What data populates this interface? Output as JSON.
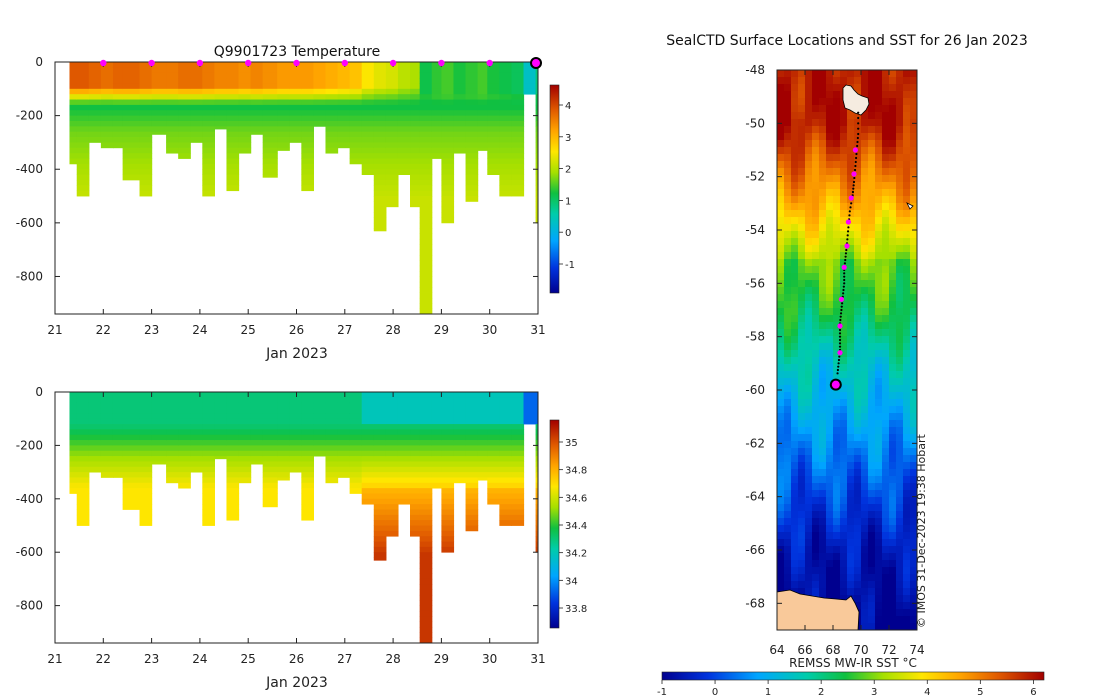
{
  "temperature_panel": {
    "title": "Q9901723  Temperature",
    "xlabel": "Jan 2023",
    "x_ticks": [
      "21",
      "22",
      "23",
      "24",
      "25",
      "26",
      "27",
      "28",
      "29",
      "30",
      "31"
    ],
    "y_ticks": [
      "0",
      "-200",
      "-400",
      "-600",
      "-800"
    ],
    "colorbar_ticks": [
      "4",
      "3",
      "2",
      "1",
      "0",
      "-1"
    ]
  },
  "salinity_panel": {
    "xlabel": "Jan 2023",
    "x_ticks": [
      "21",
      "22",
      "23",
      "24",
      "25",
      "26",
      "27",
      "28",
      "29",
      "30",
      "31"
    ],
    "y_ticks": [
      "0",
      "-200",
      "-400",
      "-600",
      "-800"
    ],
    "colorbar_ticks": [
      "35",
      "34.8",
      "34.6",
      "34.4",
      "34.2",
      "34",
      "33.8"
    ]
  },
  "map_panel": {
    "title": "SealCTD Surface Locations and SST for 26 Jan 2023",
    "lat_ticks": [
      "-48",
      "-50",
      "-52",
      "-54",
      "-56",
      "-58",
      "-60",
      "-62",
      "-64",
      "-66",
      "-68"
    ],
    "lon_ticks": [
      "64",
      "66",
      "68",
      "70",
      "72",
      "74"
    ],
    "colorbar_label": "REMSS MW-IR SST °C",
    "colorbar_ticks": [
      "-1",
      "0",
      "1",
      "2",
      "3",
      "4",
      "5",
      "6"
    ],
    "credit": "©  IMOS 31-Dec-2023 19:38 Hobart"
  },
  "colors": {
    "daily_marker": "#ff00ff",
    "current_marker": "#ff00ff",
    "land": "#f9c99a",
    "track_dot": "#000000"
  },
  "chart_data": [
    {
      "type": "heatmap",
      "title": "Q9901723  Temperature",
      "xlabel": "Jan 2023",
      "ylabel": "",
      "xlim": [
        21,
        31
      ],
      "ylim": [
        -940,
        0
      ],
      "colorbar_range": [
        -2,
        4.8
      ],
      "profiles": [
        {
          "t": 21.3,
          "depth": 380,
          "surf": 4.0
        },
        {
          "t": 21.45,
          "depth": 500,
          "surf": 4.0
        },
        {
          "t": 21.7,
          "depth": 300,
          "surf": 3.9
        },
        {
          "t": 21.95,
          "depth": 320,
          "surf": 3.8
        },
        {
          "t": 22.2,
          "depth": 320,
          "surf": 3.9
        },
        {
          "t": 22.4,
          "depth": 440,
          "surf": 3.9
        },
        {
          "t": 22.75,
          "depth": 500,
          "surf": 3.8
        },
        {
          "t": 23.0,
          "depth": 270,
          "surf": 3.7
        },
        {
          "t": 23.3,
          "depth": 340,
          "surf": 3.7
        },
        {
          "t": 23.55,
          "depth": 360,
          "surf": 3.8
        },
        {
          "t": 23.8,
          "depth": 300,
          "surf": 3.8
        },
        {
          "t": 24.05,
          "depth": 500,
          "surf": 3.7
        },
        {
          "t": 24.3,
          "depth": 250,
          "surf": 3.6
        },
        {
          "t": 24.55,
          "depth": 480,
          "surf": 3.6
        },
        {
          "t": 24.8,
          "depth": 340,
          "surf": 3.5
        },
        {
          "t": 25.05,
          "depth": 270,
          "surf": 3.6
        },
        {
          "t": 25.3,
          "depth": 430,
          "surf": 3.5
        },
        {
          "t": 25.6,
          "depth": 330,
          "surf": 3.4
        },
        {
          "t": 25.85,
          "depth": 300,
          "surf": 3.4
        },
        {
          "t": 26.1,
          "depth": 480,
          "surf": 3.4
        },
        {
          "t": 26.35,
          "depth": 240,
          "surf": 3.3
        },
        {
          "t": 26.6,
          "depth": 340,
          "surf": 3.2
        },
        {
          "t": 26.85,
          "depth": 320,
          "surf": 3.1
        },
        {
          "t": 27.1,
          "depth": 380,
          "surf": 3.0
        },
        {
          "t": 27.35,
          "depth": 420,
          "surf": 2.6
        },
        {
          "t": 27.6,
          "depth": 630,
          "surf": 2.4
        },
        {
          "t": 27.85,
          "depth": 540,
          "surf": 2.3
        },
        {
          "t": 28.1,
          "depth": 420,
          "surf": 2.1
        },
        {
          "t": 28.35,
          "depth": 540,
          "surf": 2.0
        },
        {
          "t": 28.55,
          "depth": 940,
          "surf": 1.5
        },
        {
          "t": 28.8,
          "depth": 360,
          "surf": 1.7
        },
        {
          "t": 29.0,
          "depth": 600,
          "surf": 1.8
        },
        {
          "t": 29.25,
          "depth": 340,
          "surf": 1.6
        },
        {
          "t": 29.5,
          "depth": 520,
          "surf": 1.7
        },
        {
          "t": 29.75,
          "depth": 330,
          "surf": 1.8
        },
        {
          "t": 29.95,
          "depth": 420,
          "surf": 1.6
        },
        {
          "t": 30.2,
          "depth": 500,
          "surf": 1.5
        },
        {
          "t": 30.45,
          "depth": 500,
          "surf": 1.4
        },
        {
          "t": 30.7,
          "depth": 120,
          "surf": 0.6
        },
        {
          "t": 30.95,
          "depth": 600,
          "surf": 1.2
        }
      ]
    },
    {
      "type": "heatmap",
      "title": "",
      "xlabel": "Jan 2023",
      "ylabel": "",
      "xlim": [
        21,
        31
      ],
      "ylim": [
        -940,
        0
      ],
      "colorbar_range": [
        33.7,
        35.1
      ],
      "note": "salinity uses same profile times and depths as temperature panel"
    },
    {
      "type": "scatter",
      "title": "SealCTD Surface Locations and SST for 26 Jan 2023",
      "xlabel": "",
      "ylabel": "",
      "xlim": [
        64,
        74
      ],
      "ylim": [
        -69,
        -48
      ],
      "colorbar_label": "REMSS MW-IR SST °C",
      "colorbar_range": [
        -1,
        6.2
      ],
      "track": [
        [
          69.8,
          -49.6
        ],
        [
          69.8,
          -50.4
        ],
        [
          69.7,
          -51.0
        ],
        [
          69.6,
          -51.6
        ],
        [
          69.5,
          -52.2
        ],
        [
          69.4,
          -52.7
        ],
        [
          69.2,
          -53.3
        ],
        [
          69.1,
          -53.9
        ],
        [
          69.0,
          -54.5
        ],
        [
          68.9,
          -55.0
        ],
        [
          68.8,
          -55.5
        ],
        [
          68.8,
          -56.0
        ],
        [
          68.7,
          -56.5
        ],
        [
          68.6,
          -57.0
        ],
        [
          68.5,
          -57.5
        ],
        [
          68.5,
          -58.0
        ],
        [
          68.5,
          -58.5
        ],
        [
          68.4,
          -59.0
        ],
        [
          68.3,
          -59.5
        ]
      ],
      "daily_positions": [
        [
          69.6,
          -51.0
        ],
        [
          69.5,
          -51.9
        ],
        [
          69.3,
          -52.8
        ],
        [
          69.1,
          -53.7
        ],
        [
          69.0,
          -54.6
        ],
        [
          68.8,
          -55.4
        ],
        [
          68.6,
          -56.6
        ],
        [
          68.5,
          -57.6
        ],
        [
          68.5,
          -58.6
        ]
      ],
      "current_position": [
        68.2,
        -59.8
      ]
    }
  ]
}
